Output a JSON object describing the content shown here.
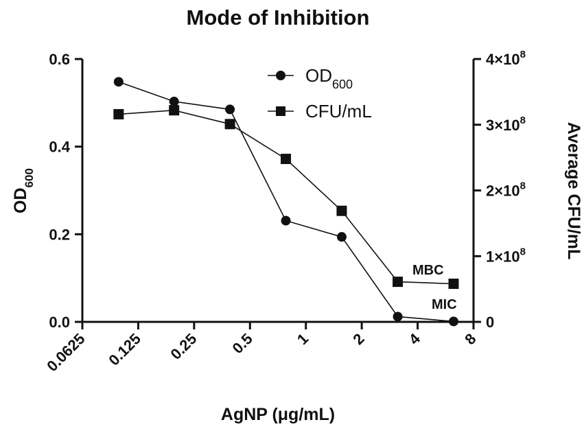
{
  "chart_data": {
    "type": "line",
    "title": "Mode of Inhibition",
    "xlabel": "AgNP (μg/mL)",
    "xscale": "log2",
    "xlim": [
      0.0625,
      8
    ],
    "xticks": [
      {
        "value": 0.0625,
        "label": "0.0625"
      },
      {
        "value": 0.125,
        "label": "0.125"
      },
      {
        "value": 0.25,
        "label": "0.25"
      },
      {
        "value": 0.5,
        "label": "0.5"
      },
      {
        "value": 1,
        "label": "1"
      },
      {
        "value": 2,
        "label": "2"
      },
      {
        "value": 4,
        "label": "4"
      },
      {
        "value": 8,
        "label": "8"
      }
    ],
    "y_left": {
      "label_main": "OD",
      "label_sub": "600",
      "lim": [
        0,
        0.6
      ],
      "ticks": [
        {
          "value": 0,
          "label": "0.0"
        },
        {
          "value": 0.2,
          "label": "0.2"
        },
        {
          "value": 0.4,
          "label": "0.4"
        },
        {
          "value": 0.6,
          "label": "0.6"
        }
      ]
    },
    "y_right": {
      "label": "Average CFU/mL",
      "lim": [
        0,
        400000000
      ],
      "ticks": [
        {
          "value": 0,
          "label": "0",
          "sup": ""
        },
        {
          "value": 100000000,
          "label": "1×10",
          "sup": "8"
        },
        {
          "value": 200000000,
          "label": "2×10",
          "sup": "8"
        },
        {
          "value": 300000000,
          "label": "3×10",
          "sup": "8"
        },
        {
          "value": 400000000,
          "label": "4×10",
          "sup": "8"
        }
      ]
    },
    "legend_position": "top-center",
    "grid": false,
    "series": [
      {
        "name_main": "OD",
        "name_sub": "600",
        "marker": "circle",
        "axis": "left",
        "x": [
          0.098,
          0.195,
          0.39,
          0.78,
          1.56,
          3.125,
          6.25
        ],
        "y": [
          0.548,
          0.503,
          0.485,
          0.231,
          0.194,
          0.012,
          0.001
        ]
      },
      {
        "name": "CFU/mL",
        "marker": "square",
        "axis": "right",
        "x": [
          0.098,
          0.195,
          0.39,
          0.78,
          1.56,
          3.125,
          6.25
        ],
        "y": [
          316000000,
          322000000,
          301000000,
          248000000,
          169000000,
          61000000,
          58000000
        ]
      }
    ],
    "annotations": [
      {
        "text": "MBC",
        "x": 6.25,
        "series": 1
      },
      {
        "text": "MIC",
        "x": 6.25,
        "series": 0
      }
    ]
  }
}
